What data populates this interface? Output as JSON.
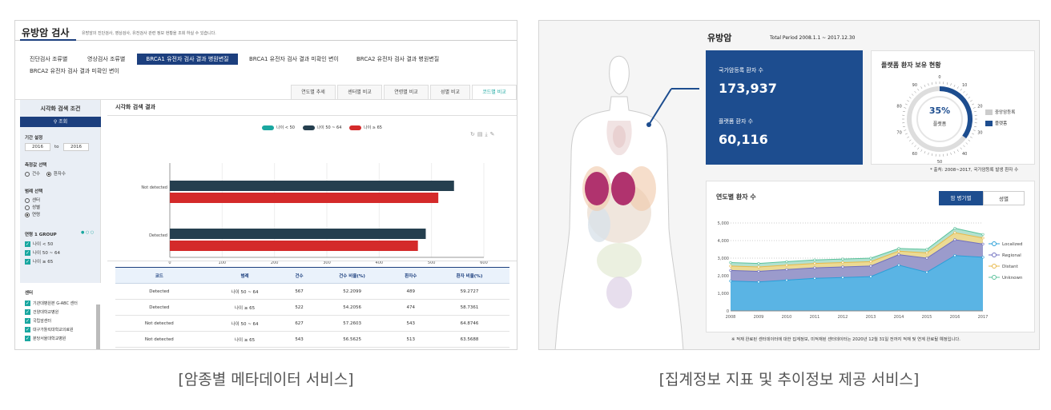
{
  "left": {
    "title": "유방암 검사",
    "subtitle": "유방암의 진단검사, 영상검사, 유전검사 관련 정보 현황을 조회 하실 수 있습니다.",
    "tabs": [
      "진단검사 조류별",
      "영상검사 조류별",
      "BRCA1 유전자 검사 결과 병원변질",
      "BRCA1 유전자 검사 결과 미확인 변이",
      "BRCA2 유전자 검사 결과 병원변질",
      "BRCA2 유전자 검사 결과 미확인 변이"
    ],
    "subtabs": [
      "연도별 추세",
      "센터별 비교",
      "연령별 비교",
      "성별 비교",
      "코드별 비교"
    ],
    "sidebar": {
      "header": "시각화 검색 조건",
      "search_btn": "조회",
      "period_label": "기간 설정",
      "period_from": "2016",
      "period_to_sep": "to",
      "period_to": "2016",
      "metric_label": "측정값 선택",
      "metric_opts": [
        "건수",
        "환자수"
      ],
      "category_label": "범례 선택",
      "category_opts": [
        "센터",
        "성별",
        "연령"
      ],
      "group_label": "연령 1 GROUP",
      "group_items": [
        "나이 < 50",
        "나이 50 ~ 64",
        "나이 ≥ 65"
      ],
      "center_label": "센터",
      "center_items": [
        "기관대병원본 G-ABC 센터",
        "건양대학교병원",
        "국립암센터",
        "대구가톨릭대학교의료원",
        "분당서울대학교병원"
      ]
    },
    "result_title": "시각화 검색 결과",
    "legend": [
      "나이 < 50",
      "나이 50 ~ 64",
      "나이 ≥ 65"
    ],
    "table": {
      "headers": [
        "코드",
        "범례",
        "건수",
        "건수 비율(%)",
        "환자수",
        "환자 비율(%)"
      ],
      "rows": [
        [
          "Detected",
          "나이 50 ~ 64",
          "567",
          "52.2099",
          "489",
          "59.2727"
        ],
        [
          "Detected",
          "나이 ≥ 65",
          "522",
          "54.2056",
          "474",
          "58.7361"
        ],
        [
          "Not detected",
          "나이 50 ~ 64",
          "627",
          "57.2603",
          "543",
          "64.8746"
        ],
        [
          "Not detected",
          "나이 ≥ 65",
          "543",
          "56.5625",
          "513",
          "63.5688"
        ]
      ]
    }
  },
  "chart_data": [
    {
      "type": "bar",
      "orientation": "horizontal",
      "categories": [
        "Not detected",
        "Detected"
      ],
      "series": [
        {
          "name": "나이 50 ~ 64",
          "values": [
            543,
            489
          ]
        },
        {
          "name": "나이 ≥ 65",
          "values": [
            513,
            474
          ]
        }
      ],
      "xlim": [
        0,
        600
      ],
      "xticks": [
        "0",
        "100",
        "200",
        "300",
        "400",
        "500",
        "600"
      ]
    },
    {
      "type": "area",
      "x": [
        "2008",
        "2009",
        "2010",
        "2011",
        "2012",
        "2013",
        "2014",
        "2015",
        "2016",
        "2017"
      ],
      "series": [
        {
          "name": "Localized",
          "values": [
            1700,
            1650,
            1750,
            1850,
            1900,
            1950,
            2600,
            2200,
            3150,
            3050
          ]
        },
        {
          "name": "Regional",
          "values": [
            2300,
            2250,
            2350,
            2450,
            2500,
            2550,
            3200,
            3000,
            4050,
            3800
          ]
        },
        {
          "name": "Distant",
          "values": [
            2550,
            2500,
            2600,
            2700,
            2750,
            2800,
            3400,
            3300,
            4450,
            4150
          ]
        },
        {
          "name": "Unknown",
          "values": [
            2750,
            2700,
            2800,
            2900,
            2950,
            3000,
            3550,
            3500,
            4700,
            4350
          ]
        }
      ],
      "ylim": [
        0,
        5000
      ],
      "yticks": [
        "0",
        "1,000",
        "2,000",
        "3,000",
        "4,000",
        "5,000"
      ]
    }
  ],
  "right": {
    "title": "유방암",
    "period": "Total Period 2008.1.1 ~ 2017.12.30",
    "stat1_label": "국가암등록 환자 수",
    "stat1_value": "173,937",
    "stat2_label": "플랫폼 환자 수",
    "stat2_value": "60,116",
    "gauge_title": "플랫폼 환자 보유 현황",
    "gauge_pct": 35,
    "gauge_pct_label": "35%",
    "gauge_sub": "플랫폼",
    "gauge_ticks": [
      "0",
      "10",
      "20",
      "30",
      "40",
      "50",
      "60",
      "70",
      "80",
      "90"
    ],
    "gauge_legend": [
      "중앙암등록",
      "플랫폼"
    ],
    "source_note": "* 출처: 2008~2017, 국가암등록 발생 환자 수",
    "yearly_title": "연도별 환자 수",
    "toggle": [
      "암 병기별",
      "성별"
    ],
    "footnote": "※ 적재 완료된 센터데이터에 대한 집계정보, 미적재된 센터데이터는 2020년 12월 31일 전까지 적재 및 연계 완료될 예정입니다."
  },
  "captions": [
    "[암종별 메타데이터 서비스]",
    "[집계정보 지표 및 추이정보 제공 서비스]"
  ],
  "colors": {
    "navy": "#1d4d8f",
    "teal": "#1aa7a0",
    "dark": "#253f4f",
    "red": "#d42a2a"
  }
}
